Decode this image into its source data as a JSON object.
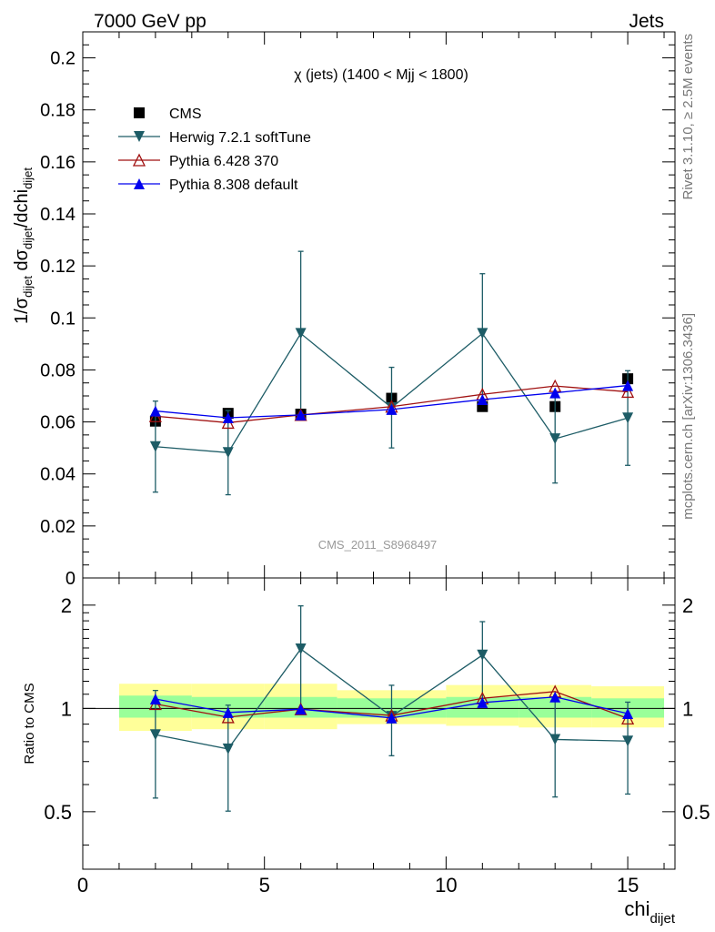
{
  "header": {
    "left": "7000 GeV pp",
    "right": "Jets"
  },
  "side_labels": {
    "rivet": "Rivet 3.1.10, ≥ 2.5M events",
    "mcplots": "mcplots.cern.ch [arXiv:1306.3436]"
  },
  "watermark": "CMS_2011_S8968497",
  "chart_data": [
    {
      "type": "scatter",
      "panel": "main",
      "title": "χ (jets) (1400 < Mjj < 1800)",
      "ylabel": "1/σ_dijet dσ_dijet/dchi_dijet",
      "ylim": [
        0,
        0.21
      ],
      "yticks": [
        0,
        0.02,
        0.04,
        0.06,
        0.08,
        0.1,
        0.12,
        0.14,
        0.16,
        0.18,
        0.2
      ],
      "ytick_labels": [
        "0",
        "0.02",
        "0.04",
        "0.06",
        "0.08",
        "0.1",
        "0.12",
        "0.14",
        "0.16",
        "0.18",
        "0.2"
      ],
      "xlim": [
        0,
        16.3
      ],
      "legend_position": "top-left",
      "series": [
        {
          "name": "CMS",
          "color": "#000000",
          "marker": "square",
          "x": [
            2,
            4,
            6,
            8.5,
            11,
            13,
            15
          ],
          "y": [
            0.0603,
            0.0633,
            0.063,
            0.0691,
            0.0659,
            0.0659,
            0.0766
          ]
        },
        {
          "name": "Herwig 7.2.1 softTune",
          "color": "#1d5c66",
          "marker": "triangle-down",
          "x": [
            2,
            4,
            6,
            8.5,
            11,
            13,
            15
          ],
          "y": [
            0.0505,
            0.0482,
            0.094,
            0.0655,
            0.094,
            0.0535,
            0.0615
          ],
          "err_low": [
            0.0175,
            0.0162,
            0.031,
            0.0155,
            0.0235,
            0.017,
            0.0182
          ],
          "err_high": [
            0.0175,
            0.0162,
            0.0316,
            0.0155,
            0.023,
            0.017,
            0.0182
          ]
        },
        {
          "name": "Pythia 6.428 370",
          "color": "#a01010",
          "marker": "triangle-up-open",
          "x": [
            2,
            4,
            6,
            8.5,
            11,
            13,
            15
          ],
          "y": [
            0.0622,
            0.0597,
            0.0627,
            0.0659,
            0.0706,
            0.0738,
            0.0716
          ]
        },
        {
          "name": "Pythia 8.308 default",
          "color": "#0000ee",
          "marker": "triangle-up",
          "x": [
            2,
            4,
            6,
            8.5,
            11,
            13,
            15
          ],
          "y": [
            0.0642,
            0.0616,
            0.0627,
            0.0648,
            0.0686,
            0.0712,
            0.074
          ]
        }
      ]
    },
    {
      "type": "scatter",
      "panel": "ratio",
      "ylabel": "Ratio to CMS",
      "xlabel": "chi_dijet",
      "ylim": [
        0.34,
        2.4
      ],
      "log_y": true,
      "yticks": [
        0.5,
        1,
        2
      ],
      "ytick_labels": [
        "0.5",
        "1",
        "2"
      ],
      "xlim": [
        0,
        16.3
      ],
      "xticks": [
        0,
        5,
        10,
        15
      ],
      "xtick_labels": [
        "0",
        "5",
        "10",
        "15"
      ],
      "bands": {
        "edges": [
          1,
          3,
          5,
          7,
          10,
          12,
          14,
          16
        ],
        "inner_low": [
          0.94,
          0.94,
          0.94,
          0.94,
          0.94,
          0.94,
          0.94
        ],
        "inner_high": [
          1.09,
          1.08,
          1.08,
          1.07,
          1.08,
          1.08,
          1.07
        ],
        "outer_low": [
          0.86,
          0.87,
          0.87,
          0.9,
          0.89,
          0.88,
          0.88
        ],
        "outer_high": [
          1.18,
          1.18,
          1.18,
          1.13,
          1.17,
          1.17,
          1.16
        ],
        "inner_color": "#99ff99",
        "outer_color": "#ffff99"
      },
      "series": [
        {
          "name": "Herwig 7.2.1 softTune",
          "color": "#1d5c66",
          "marker": "triangle-down",
          "x": [
            2,
            4,
            6,
            8.5,
            11,
            13,
            15
          ],
          "y": [
            0.838,
            0.762,
            1.49,
            0.948,
            1.43,
            0.812,
            0.803
          ],
          "err_low": [
            0.29,
            0.26,
            0.5,
            0.22,
            0.36,
            0.26,
            0.24
          ],
          "err_high": [
            0.29,
            0.26,
            0.5,
            0.22,
            0.36,
            0.26,
            0.24
          ]
        },
        {
          "name": "Pythia 6.428 370",
          "color": "#a01010",
          "marker": "triangle-up-open",
          "x": [
            2,
            4,
            6,
            8.5,
            11,
            13,
            15
          ],
          "y": [
            1.03,
            0.943,
            0.995,
            0.954,
            1.07,
            1.12,
            0.935
          ]
        },
        {
          "name": "Pythia 8.308 default",
          "color": "#0000ee",
          "marker": "triangle-up",
          "x": [
            2,
            4,
            6,
            8.5,
            11,
            13,
            15
          ],
          "y": [
            1.065,
            0.973,
            0.995,
            0.938,
            1.04,
            1.08,
            0.966
          ]
        }
      ]
    }
  ]
}
